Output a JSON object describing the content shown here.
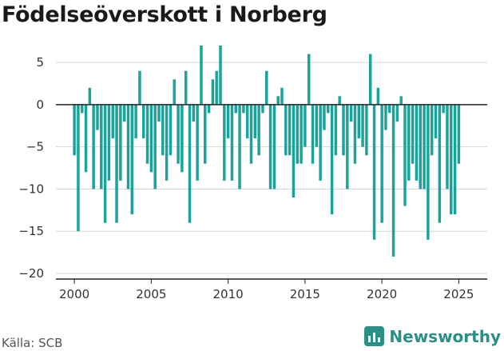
{
  "title": "Födelseöverskott i Norberg",
  "source": "Källa: SCB",
  "brand": {
    "name": "Newsworthy",
    "color": "#2a8f86"
  },
  "colors": {
    "bar": "#1aa39a",
    "grid": "#d6d6d6",
    "zero": "#222222",
    "tick": "#333333"
  },
  "chart_data": {
    "type": "bar",
    "title": "Födelseöverskott i Norberg",
    "xlabel": "",
    "ylabel": "",
    "ylim": [
      -20,
      7
    ],
    "yticks": [
      5,
      0,
      -5,
      -10,
      -15,
      -20
    ],
    "xlim": [
      1998.8,
      2026.85
    ],
    "xticks": [
      2000,
      2005,
      2010,
      2015,
      2020,
      2025
    ],
    "grid": true,
    "interval": "quarterly",
    "series": [
      {
        "start": 2000.0,
        "step": 0.25,
        "values": [
          -6,
          -15,
          -1,
          -8,
          2,
          -10,
          -3,
          -10,
          -14,
          -9,
          -4,
          -14,
          -9,
          -2,
          -10,
          -13,
          -4,
          4,
          -4,
          -7,
          -8,
          -10,
          -2,
          -6,
          -9,
          -6,
          3,
          -7,
          -8,
          4,
          -14,
          -2,
          -9,
          7,
          -7,
          -1,
          3,
          4,
          7,
          -9,
          -4,
          -9,
          -1,
          -10,
          -1,
          -4,
          -7,
          -4,
          -6,
          -1,
          4,
          -10,
          -10,
          1,
          2,
          -6,
          -6,
          -11,
          -7,
          -7,
          -5,
          6,
          -7,
          -5,
          -9,
          -3,
          -1,
          -13,
          -6,
          1,
          -6,
          -10,
          -2,
          -7,
          -4,
          -5,
          -6,
          6,
          -16,
          2,
          -14,
          -3,
          -1,
          -18,
          -2,
          1,
          -12,
          -9,
          -7,
          -9,
          -10,
          -10,
          -16,
          -6,
          -4,
          -14,
          -1,
          -10,
          -13,
          -13,
          -7
        ]
      }
    ]
  }
}
